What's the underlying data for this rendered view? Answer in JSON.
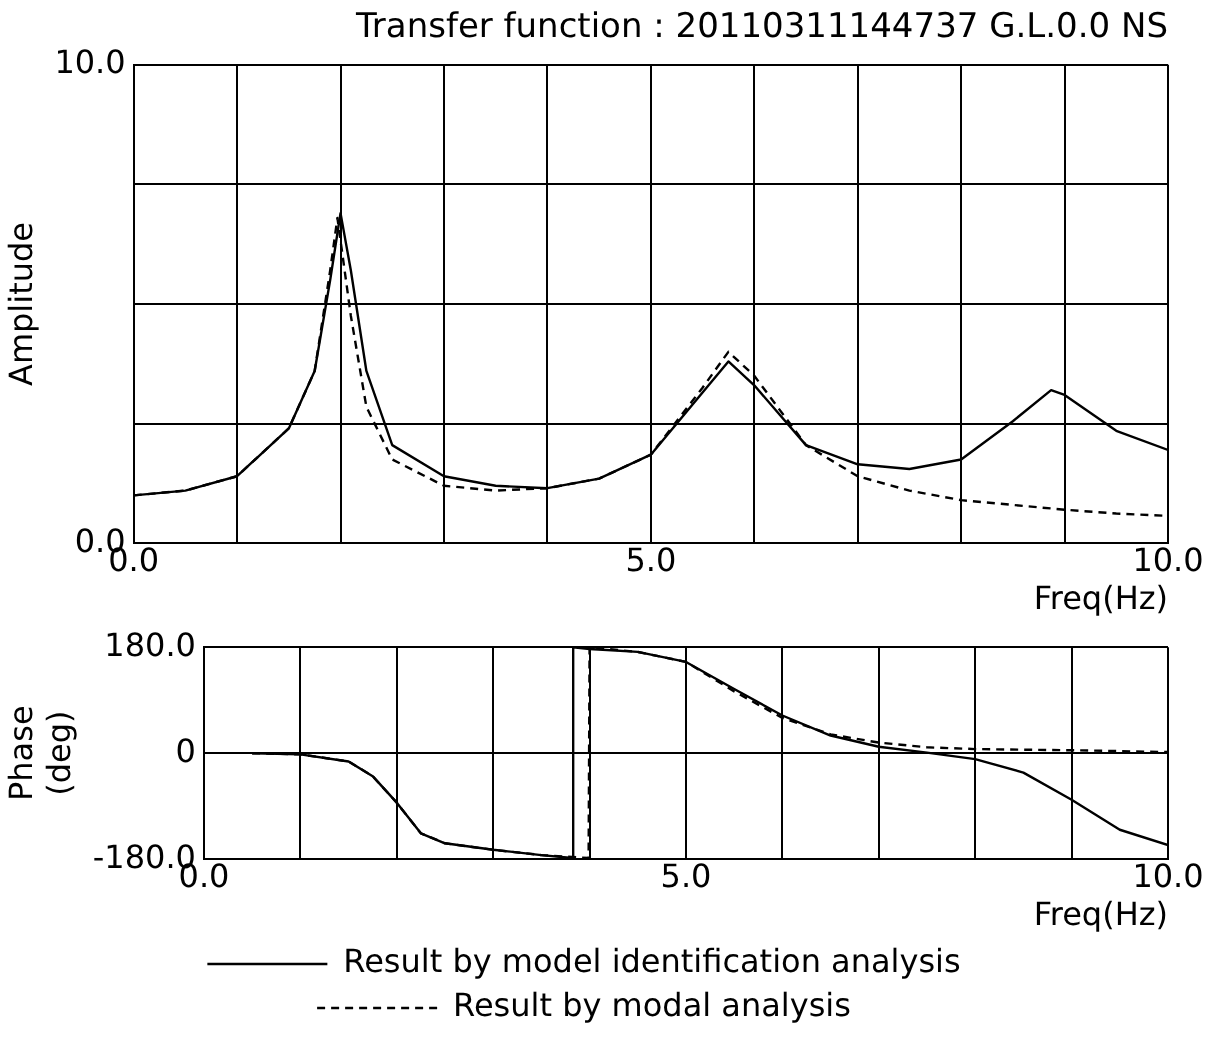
{
  "chart_data": [
    {
      "type": "line",
      "title": "Transfer function : 20110311144737 G.L.0.0 NS",
      "xlabel": "Freq(Hz)",
      "ylabel": "Amplitude",
      "xlim": [
        0,
        10
      ],
      "xticks": [
        {
          "value": 0,
          "label": "0.0"
        },
        {
          "value": 1,
          "label": null
        },
        {
          "value": 2,
          "label": null
        },
        {
          "value": 3,
          "label": null
        },
        {
          "value": 4,
          "label": null
        },
        {
          "value": 5,
          "label": "5.0"
        },
        {
          "value": 6,
          "label": null
        },
        {
          "value": 7,
          "label": null
        },
        {
          "value": 8,
          "label": null
        },
        {
          "value": 9,
          "label": null
        },
        {
          "value": 10,
          "label": "10.0"
        }
      ],
      "ylim": [
        0,
        10
      ],
      "yticks": [
        {
          "value": 0,
          "label": "0.0"
        },
        {
          "value": 2.5,
          "label": null
        },
        {
          "value": 5,
          "label": null
        },
        {
          "value": 7.5,
          "label": null
        },
        {
          "value": 10,
          "label": "10.0"
        }
      ],
      "grid": true,
      "marker": "none",
      "series": [
        {
          "color": "#000000",
          "line_style": "solid",
          "x": [
            0,
            0.5,
            1,
            1.5,
            1.75,
            1.9,
            2,
            2.1,
            2.25,
            2.5,
            3,
            3.5,
            4,
            4.5,
            5,
            5.5,
            5.75,
            6,
            6.5,
            7,
            7.5,
            8,
            8.5,
            8.87,
            9,
            9.5,
            10
          ],
          "values": [
            1,
            1.1,
            1.4,
            2.4,
            3.6,
            5.5,
            6.9,
            5.7,
            3.6,
            2.05,
            1.4,
            1.2,
            1.15,
            1.35,
            1.85,
            3.15,
            3.8,
            3.3,
            2.05,
            1.65,
            1.55,
            1.75,
            2.55,
            3.2,
            3.1,
            2.35,
            1.95
          ]
        },
        {
          "color": "#000000",
          "line_style": "dashed",
          "x": [
            0,
            0.5,
            1,
            1.5,
            1.75,
            1.9,
            1.97,
            2.1,
            2.25,
            2.5,
            3,
            3.5,
            4,
            4.5,
            5,
            5.5,
            5.75,
            6,
            6.5,
            7,
            7.5,
            8,
            8.5,
            9,
            9.5,
            10
          ],
          "values": [
            1,
            1.1,
            1.4,
            2.4,
            3.6,
            5.7,
            6.8,
            4.75,
            2.85,
            1.75,
            1.2,
            1.1,
            1.15,
            1.35,
            1.85,
            3.25,
            4,
            3.5,
            2.05,
            1.4,
            1.1,
            0.9,
            0.8,
            0.7,
            0.62,
            0.57
          ]
        }
      ]
    },
    {
      "type": "line",
      "xlabel": "Freq(Hz)",
      "ylabel": "Phase (deg)",
      "xlim": [
        0,
        10
      ],
      "xticks": [
        {
          "value": 0,
          "label": "0.0"
        },
        {
          "value": 1,
          "label": null
        },
        {
          "value": 2,
          "label": null
        },
        {
          "value": 3,
          "label": null
        },
        {
          "value": 4,
          "label": null
        },
        {
          "value": 5,
          "label": "5.0"
        },
        {
          "value": 6,
          "label": null
        },
        {
          "value": 7,
          "label": null
        },
        {
          "value": 8,
          "label": null
        },
        {
          "value": 9,
          "label": null
        },
        {
          "value": 10,
          "label": "10.0"
        }
      ],
      "ylim": [
        -180,
        180
      ],
      "yticks": [
        {
          "value": -180,
          "label": "-180.0"
        },
        0,
        {
          "value": 180,
          "label": "180.0"
        }
      ],
      "grid": true,
      "legend": "bottom",
      "marker": "none",
      "series": [
        {
          "name": "Result by model identification analysis",
          "color": "#000000",
          "line_style": "solid",
          "x": [
            0.5,
            1,
            1.5,
            1.75,
            2,
            2.25,
            2.5,
            3,
            3.5,
            3.82,
            3.83,
            4,
            4.5,
            5,
            5.5,
            6,
            6.5,
            7,
            7.5,
            8,
            8.5,
            9,
            9.5,
            10
          ],
          "values": [
            0,
            -2,
            -14,
            -39,
            -84,
            -136,
            -153,
            -164,
            -173,
            -178,
            180,
            177,
            172,
            155,
            109,
            64,
            30,
            11,
            1,
            -10,
            -33,
            -79,
            -130,
            -156
          ]
        },
        {
          "name": "Result by modal analysis",
          "color": "#000000",
          "line_style": "dashed",
          "x": [
            0.5,
            1,
            1.5,
            1.75,
            2,
            2.25,
            2.5,
            3,
            3.5,
            3.99,
            4,
            4.5,
            5,
            5.5,
            6,
            6.5,
            7,
            7.5,
            8,
            9,
            10
          ],
          "values": [
            0,
            -2,
            -14,
            -39,
            -84,
            -136,
            -153,
            -164,
            -173,
            -178,
            180,
            172,
            155,
            105,
            60,
            32,
            18,
            10,
            7,
            5,
            2
          ]
        }
      ]
    }
  ]
}
